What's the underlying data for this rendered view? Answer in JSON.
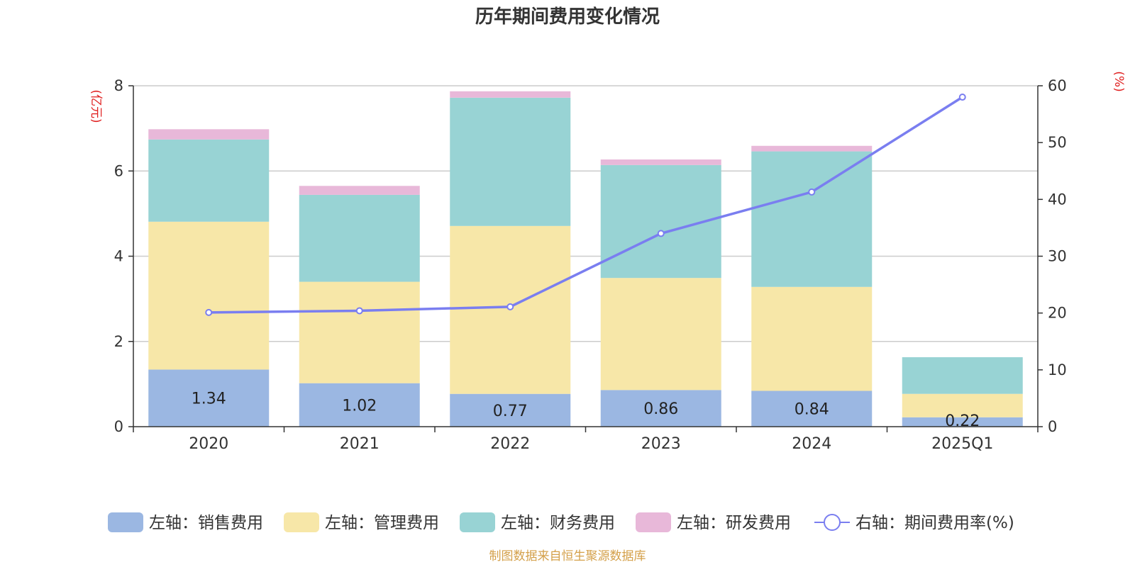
{
  "chart_data": {
    "type": "bar",
    "stacked": true,
    "title": "历年期间费用变化情况",
    "ylabel_left": "(亿元)",
    "ylabel_right": "(%)",
    "categories": [
      "2020",
      "2021",
      "2022",
      "2023",
      "2024",
      "2025Q1"
    ],
    "ylim_left": [
      0,
      8
    ],
    "yticks_left": [
      "0",
      "2",
      "4",
      "6",
      "8"
    ],
    "ylim_right": [
      0,
      60
    ],
    "yticks_right": [
      "0",
      "10",
      "20",
      "30",
      "40",
      "50",
      "60"
    ],
    "grid": true,
    "legend_position": "bottom",
    "series": [
      {
        "name": "左轴：销售费用",
        "axis": "left",
        "color": "#9bb7e2",
        "values": [
          1.34,
          1.02,
          0.77,
          0.86,
          0.84,
          0.22
        ],
        "labels": [
          "1.34",
          "1.02",
          "0.77",
          "0.86",
          "0.84",
          "0.22"
        ]
      },
      {
        "name": "左轴：管理费用",
        "axis": "left",
        "color": "#f7e7a8",
        "values": [
          3.47,
          2.38,
          3.94,
          2.63,
          2.44,
          0.55
        ]
      },
      {
        "name": "左轴：财务费用",
        "axis": "left",
        "color": "#98d3d4",
        "values": [
          1.93,
          2.04,
          3.01,
          2.65,
          3.18,
          0.86
        ]
      },
      {
        "name": "左轴：研发费用",
        "axis": "left",
        "color": "#e8b8d9",
        "values": [
          0.24,
          0.21,
          0.15,
          0.13,
          0.13,
          0.0
        ]
      },
      {
        "name": "右轴：期间费用率(%)",
        "axis": "right",
        "type": "line",
        "color": "#7a7ef0",
        "values": [
          20.1,
          20.4,
          21.1,
          34.0,
          41.3,
          58.0
        ]
      }
    ],
    "source_note": "制图数据来自恒生聚源数据库"
  }
}
